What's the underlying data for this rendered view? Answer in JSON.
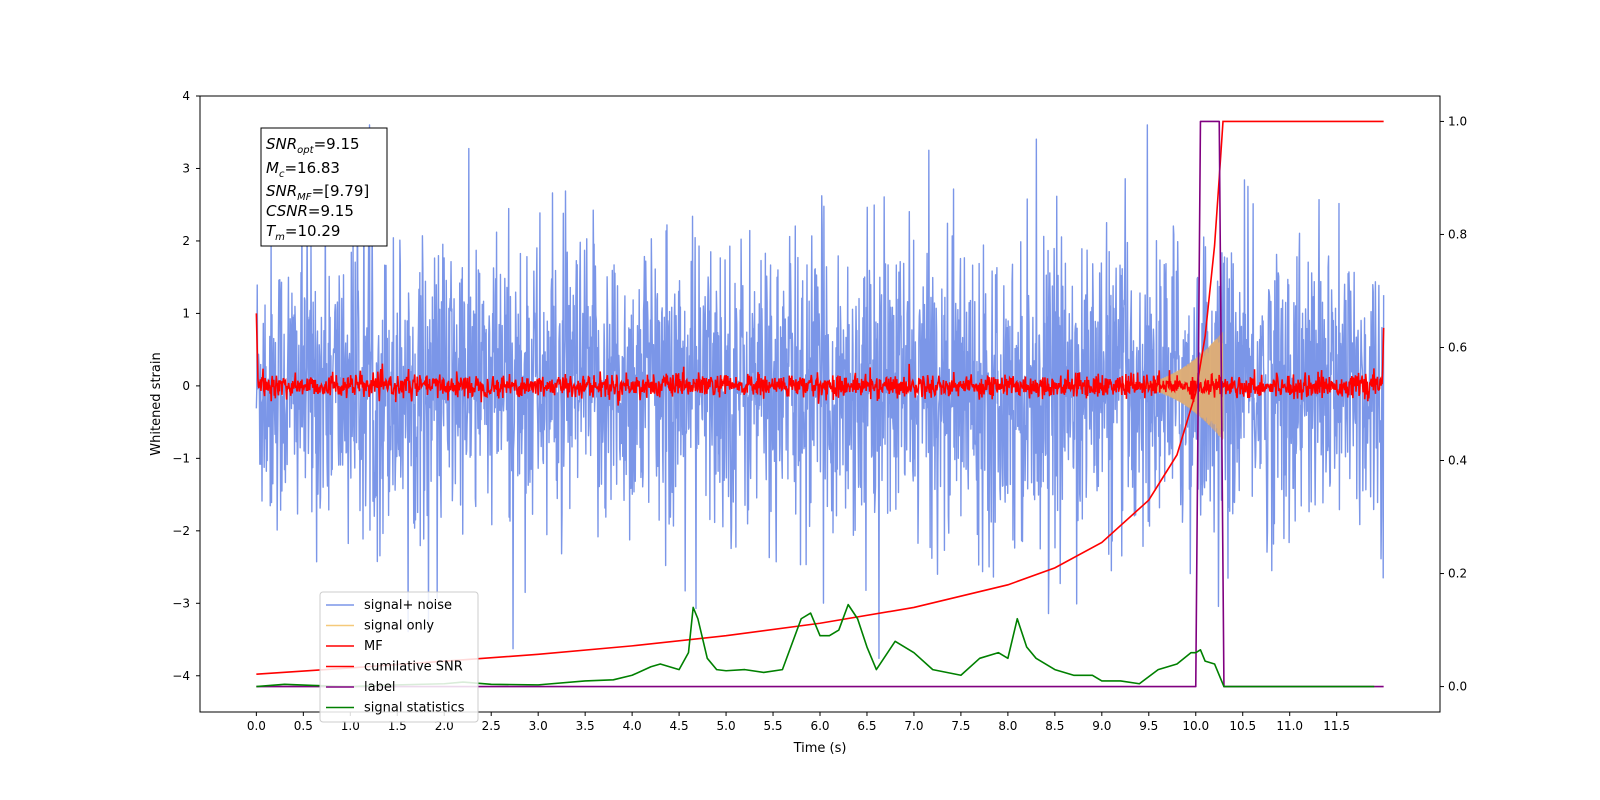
{
  "chart_data": {
    "type": "line",
    "xlabel": "Time (s)",
    "ylabel": "Whitened strain",
    "xlim": [
      -0.6,
      12.6
    ],
    "ylim": [
      -4.5,
      4.0
    ],
    "y2lim": [
      -0.045,
      1.045
    ],
    "x_ticks": [
      "0.0",
      "0.5",
      "1.0",
      "1.5",
      "2.0",
      "2.5",
      "3.0",
      "3.5",
      "4.0",
      "4.5",
      "5.0",
      "5.5",
      "6.0",
      "6.5",
      "7.0",
      "7.5",
      "8.0",
      "8.5",
      "9.0",
      "9.5",
      "10.0",
      "10.5",
      "11.0",
      "11.5"
    ],
    "y_ticks": [
      "4",
      "3",
      "2",
      "1",
      "0",
      "−1",
      "−2",
      "−3",
      "−4"
    ],
    "y2_ticks": [
      "1.0",
      "0.8",
      "0.6",
      "0.4",
      "0.2",
      "0.0"
    ],
    "grid": false,
    "legend_position": "lower-left",
    "annotation": {
      "snr_opt": {
        "prefix": "SNR",
        "sub": "opt",
        "value": "=9.15"
      },
      "mc": {
        "prefix": "M",
        "sub": "c",
        "value": "=16.83"
      },
      "snr_mf": {
        "prefix": "SNR",
        "sub": "MF",
        "value": "=[9.79]"
      },
      "csnr": {
        "prefix": "CSNR",
        "sub": "",
        "value": "=9.15"
      },
      "tm": {
        "prefix": "T",
        "sub": "m",
        "value": "=10.29"
      }
    },
    "series": [
      {
        "name": "signal+ noise",
        "color": "#7b96e8",
        "axis": "left",
        "description_values": {
          "mean": 0,
          "std": 1.0,
          "x_range": [
            0,
            12.0
          ]
        }
      },
      {
        "name": "signal only",
        "color": "#f5c97a",
        "axis": "left",
        "description_values": {
          "peak_time": 10.29,
          "peak_amplitude": 0.75
        }
      },
      {
        "name": "MF",
        "color": "#ff0000",
        "axis": "left",
        "description_values": {
          "std": 0.08,
          "start_value": 1.0,
          "end_value": 0.8
        }
      },
      {
        "name": "cumilative SNR",
        "color": "#ff0000",
        "axis": "right",
        "x": [
          0.0,
          1.0,
          2.0,
          3.0,
          4.0,
          5.0,
          6.0,
          7.0,
          8.0,
          8.5,
          9.0,
          9.5,
          9.8,
          10.0,
          10.1,
          10.2,
          10.25,
          10.29,
          12.0
        ],
        "values": [
          0.022,
          0.033,
          0.045,
          0.057,
          0.072,
          0.09,
          0.112,
          0.14,
          0.18,
          0.21,
          0.255,
          0.33,
          0.41,
          0.52,
          0.62,
          0.78,
          0.9,
          1.0,
          1.0
        ]
      },
      {
        "name": "label",
        "color": "#800080",
        "axis": "right",
        "x": [
          0.0,
          10.0,
          10.05,
          10.25,
          10.3,
          12.0
        ],
        "values": [
          0,
          0,
          1,
          1,
          0,
          0
        ]
      },
      {
        "name": "signal statistics",
        "color": "#008000",
        "axis": "right",
        "x": [
          0.0,
          0.3,
          0.6,
          1.0,
          1.5,
          2.0,
          2.2,
          2.5,
          3.0,
          3.5,
          3.8,
          4.0,
          4.2,
          4.3,
          4.5,
          4.6,
          4.65,
          4.7,
          4.8,
          4.9,
          5.0,
          5.2,
          5.4,
          5.6,
          5.8,
          5.9,
          6.0,
          6.1,
          6.2,
          6.3,
          6.4,
          6.5,
          6.6,
          6.8,
          7.0,
          7.2,
          7.5,
          7.7,
          7.9,
          8.0,
          8.1,
          8.2,
          8.3,
          8.5,
          8.7,
          8.9,
          9.0,
          9.2,
          9.4,
          9.6,
          9.8,
          9.95,
          10.0,
          10.05,
          10.1,
          10.2,
          10.3,
          10.35,
          11.0,
          11.9
        ],
        "values": [
          0.0,
          0.004,
          0.002,
          0.0,
          0.003,
          0.005,
          0.008,
          0.004,
          0.003,
          0.01,
          0.012,
          0.02,
          0.035,
          0.04,
          0.03,
          0.06,
          0.14,
          0.12,
          0.05,
          0.03,
          0.028,
          0.03,
          0.025,
          0.03,
          0.12,
          0.13,
          0.09,
          0.09,
          0.1,
          0.145,
          0.12,
          0.07,
          0.03,
          0.08,
          0.06,
          0.03,
          0.02,
          0.05,
          0.06,
          0.05,
          0.12,
          0.07,
          0.05,
          0.03,
          0.02,
          0.02,
          0.01,
          0.01,
          0.005,
          0.03,
          0.04,
          0.06,
          0.06,
          0.065,
          0.045,
          0.04,
          0.0,
          0.0,
          0.0,
          0.0
        ]
      }
    ]
  }
}
